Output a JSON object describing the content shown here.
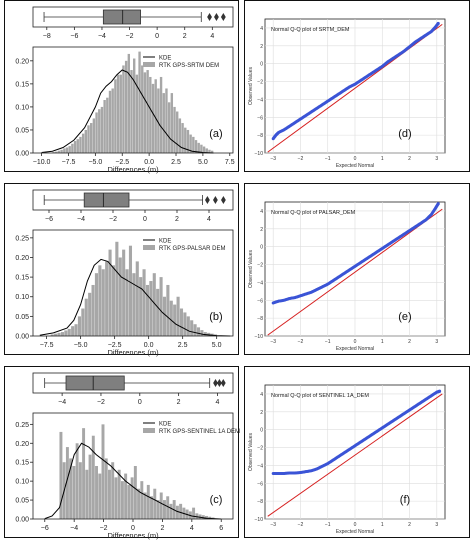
{
  "chart_data": [
    {
      "type": "histogram",
      "panel_label": "(a)",
      "xlabel": "Differences (m)",
      "xticks": [
        -10.0,
        -7.5,
        -5.0,
        -2.5,
        0.0,
        2.5,
        5.0,
        7.5
      ],
      "xticklabels": [
        "−10.0",
        "−7.5",
        "−5.0",
        "−2.5",
        "0.0",
        "2.5",
        "5.0",
        "7.5"
      ],
      "xlim": [
        -10.8,
        7.8
      ],
      "yticks": [
        0.0,
        0.05,
        0.1,
        0.15,
        0.2
      ],
      "yticklabels": [
        "0.00",
        "0.05",
        "0.10",
        "0.15",
        "0.20"
      ],
      "ylim": [
        0,
        0.23
      ],
      "legend": [
        "KDE",
        "RTK GPS-SRTM DEM"
      ],
      "bins": {
        "start": -9.0,
        "width": 0.25,
        "values": [
          0.002,
          0.003,
          0.005,
          0.007,
          0.01,
          0.012,
          0.015,
          0.02,
          0.026,
          0.03,
          0.035,
          0.042,
          0.05,
          0.06,
          0.065,
          0.075,
          0.088,
          0.095,
          0.1,
          0.115,
          0.12,
          0.135,
          0.14,
          0.16,
          0.17,
          0.17,
          0.19,
          0.2,
          0.215,
          0.18,
          0.205,
          0.17,
          0.22,
          0.19,
          0.175,
          0.18,
          0.165,
          0.15,
          0.16,
          0.14,
          0.165,
          0.13,
          0.14,
          0.11,
          0.13,
          0.1,
          0.09,
          0.075,
          0.065,
          0.055,
          0.05,
          0.04,
          0.035,
          0.028,
          0.022,
          0.018,
          0.014,
          0.01,
          0.007,
          0.005
        ]
      },
      "kde": {
        "x": [
          -10,
          -9,
          -8,
          -7,
          -6,
          -5,
          -4.5,
          -4,
          -3.5,
          -3,
          -2.5,
          -2,
          -1.5,
          -1,
          0,
          1,
          2,
          3,
          4,
          5,
          6
        ],
        "y": [
          0.001,
          0.004,
          0.012,
          0.028,
          0.055,
          0.1,
          0.13,
          0.145,
          0.155,
          0.17,
          0.18,
          0.175,
          0.16,
          0.14,
          0.1,
          0.06,
          0.03,
          0.012,
          0.004,
          0.001,
          0.0
        ]
      },
      "boxplot": {
        "whisker_low": -8.2,
        "q1": -3.9,
        "median": -2.5,
        "q3": -1.2,
        "whisker_high": 3.2,
        "outliers": [
          3.8,
          4.3,
          4.8
        ],
        "xticks": [
          -8,
          -6,
          -4,
          -2,
          0,
          2,
          4
        ],
        "xticklabels": [
          "−8",
          "−6",
          "−4",
          "−2",
          "0",
          "2",
          "4"
        ],
        "xlim": [
          -9,
          5.5
        ]
      }
    },
    {
      "type": "histogram",
      "panel_label": "(b)",
      "xlabel": "Differences (m)",
      "xticks": [
        -7.5,
        -5.0,
        -2.5,
        0.0,
        2.5,
        5.0
      ],
      "xticklabels": [
        "−7.5",
        "−5.0",
        "−2.5",
        "0.0",
        "2.5",
        "5.0"
      ],
      "xlim": [
        -8.5,
        6.2
      ],
      "yticks": [
        0.0,
        0.05,
        0.1,
        0.15,
        0.2,
        0.25
      ],
      "yticklabels": [
        "0.00",
        "0.05",
        "0.10",
        "0.15",
        "0.20",
        "0.25"
      ],
      "ylim": [
        0,
        0.27
      ],
      "legend": [
        "KDE",
        "RTK GPS-PALSAR DEM"
      ],
      "bins": {
        "start": -7.2,
        "width": 0.25,
        "values": [
          0.004,
          0.006,
          0.008,
          0.01,
          0.014,
          0.018,
          0.025,
          0.03,
          0.05,
          0.07,
          0.095,
          0.11,
          0.13,
          0.16,
          0.18,
          0.17,
          0.19,
          0.22,
          0.18,
          0.24,
          0.2,
          0.22,
          0.17,
          0.23,
          0.16,
          0.19,
          0.15,
          0.17,
          0.13,
          0.14,
          0.16,
          0.12,
          0.15,
          0.1,
          0.13,
          0.09,
          0.08,
          0.1,
          0.07,
          0.06,
          0.05,
          0.04,
          0.03,
          0.022,
          0.015,
          0.01,
          0.008,
          0.006,
          0.004
        ]
      },
      "kde": {
        "x": [
          -8,
          -7,
          -6,
          -5.5,
          -5,
          -4.5,
          -4,
          -3.5,
          -3,
          -2.5,
          -2,
          -1.5,
          -1,
          -0.5,
          0,
          0.5,
          1,
          2,
          3,
          4,
          5,
          6
        ],
        "y": [
          0.002,
          0.008,
          0.02,
          0.04,
          0.08,
          0.14,
          0.18,
          0.195,
          0.19,
          0.17,
          0.15,
          0.14,
          0.13,
          0.12,
          0.1,
          0.08,
          0.06,
          0.03,
          0.012,
          0.004,
          0.001,
          0.0
        ]
      },
      "boxplot": {
        "whisker_low": -6.3,
        "q1": -3.8,
        "median": -2.6,
        "q3": -1.0,
        "whisker_high": 3.6,
        "outliers": [
          3.9,
          4.4,
          4.9
        ],
        "xticks": [
          -6,
          -4,
          -2,
          0,
          2,
          4
        ],
        "xticklabels": [
          "−6",
          "−4",
          "−2",
          "0",
          "2",
          "4"
        ],
        "xlim": [
          -7.0,
          5.5
        ]
      }
    },
    {
      "type": "histogram",
      "panel_label": "(c)",
      "xlabel": "Differences (m)",
      "xticks": [
        -6,
        -4,
        -2,
        0,
        2,
        4,
        6
      ],
      "xticklabels": [
        "−6",
        "−4",
        "−2",
        "0",
        "2",
        "4",
        "6"
      ],
      "xlim": [
        -6.8,
        6.8
      ],
      "yticks": [
        0.0,
        0.05,
        0.1,
        0.15,
        0.2,
        0.25
      ],
      "yticklabels": [
        "0.00",
        "0.05",
        "0.10",
        "0.15",
        "0.20",
        "0.25"
      ],
      "ylim": [
        0,
        0.28
      ],
      "legend": [
        "KDE",
        "RTK GPS-SENTINEL 1A DEM"
      ],
      "bins": {
        "start": -5.0,
        "width": 0.22,
        "values": [
          0.23,
          0.15,
          0.19,
          0.16,
          0.14,
          0.2,
          0.15,
          0.24,
          0.13,
          0.17,
          0.22,
          0.14,
          0.12,
          0.25,
          0.16,
          0.13,
          0.15,
          0.11,
          0.13,
          0.1,
          0.12,
          0.09,
          0.11,
          0.14,
          0.08,
          0.1,
          0.07,
          0.09,
          0.06,
          0.08,
          0.05,
          0.07,
          0.05,
          0.06,
          0.04,
          0.05,
          0.035,
          0.04,
          0.03,
          0.025,
          0.02,
          0.03,
          0.015,
          0.012,
          0.01,
          0.008,
          0.006,
          0.004
        ]
      },
      "kde": {
        "x": [
          -6,
          -5.5,
          -5,
          -4.5,
          -4,
          -3.5,
          -3,
          -2.5,
          -2,
          -1.5,
          -1,
          -0.5,
          0,
          0.5,
          1,
          1.5,
          2,
          3,
          4,
          5,
          6
        ],
        "y": [
          0.001,
          0.008,
          0.03,
          0.1,
          0.17,
          0.2,
          0.19,
          0.17,
          0.155,
          0.14,
          0.12,
          0.1,
          0.085,
          0.07,
          0.06,
          0.05,
          0.04,
          0.02,
          0.008,
          0.002,
          0.0
        ]
      },
      "boxplot": {
        "whisker_low": -4.9,
        "q1": -3.8,
        "median": -2.4,
        "q3": -0.8,
        "whisker_high": 3.6,
        "outliers": [
          3.9,
          4.1,
          4.3
        ],
        "xticks": [
          -4,
          -2,
          0,
          2,
          4
        ],
        "xticklabels": [
          "−4",
          "−2",
          "0",
          "2",
          "4"
        ],
        "xlim": [
          -5.5,
          4.8
        ]
      }
    },
    {
      "type": "scatter",
      "panel_label": "(d)",
      "title": "Normal Q-Q plot of SRTM_DEM",
      "xlabel": "Expected Normal",
      "ylabel": "Observed Values",
      "xticks": [
        -3,
        -2,
        -1,
        0,
        1,
        2,
        3
      ],
      "xticklabels": [
        "−3",
        "−2",
        "−1",
        "0",
        "1",
        "2",
        "3"
      ],
      "xlim": [
        -3.3,
        3.3
      ],
      "yticks": [
        -10,
        -8,
        -6,
        -4,
        -2,
        0,
        2,
        4
      ],
      "yticklabels": [
        "−10",
        "−8",
        "−6",
        "−4",
        "−2",
        "0",
        "2",
        "4"
      ],
      "ylim": [
        -10,
        5
      ],
      "line": {
        "x": [
          -3.2,
          3.2
        ],
        "y": [
          -9.9,
          4.4
        ]
      },
      "qq": [
        [
          -3,
          -8.4
        ],
        [
          -2.9,
          -8.0
        ],
        [
          -2.8,
          -7.7
        ],
        [
          -2.6,
          -7.4
        ],
        [
          -2.4,
          -7.0
        ],
        [
          -2.2,
          -6.6
        ],
        [
          -2,
          -6.2
        ],
        [
          -1.8,
          -5.8
        ],
        [
          -1.6,
          -5.4
        ],
        [
          -1.4,
          -5.0
        ],
        [
          -1.2,
          -4.6
        ],
        [
          -1,
          -4.2
        ],
        [
          -0.8,
          -3.8
        ],
        [
          -0.6,
          -3.4
        ],
        [
          -0.4,
          -3.0
        ],
        [
          -0.2,
          -2.6
        ],
        [
          0,
          -2.3
        ],
        [
          0.2,
          -1.9
        ],
        [
          0.4,
          -1.5
        ],
        [
          0.6,
          -1.1
        ],
        [
          0.8,
          -0.7
        ],
        [
          1,
          -0.3
        ],
        [
          1.2,
          0.2
        ],
        [
          1.4,
          0.6
        ],
        [
          1.6,
          1.0
        ],
        [
          1.8,
          1.4
        ],
        [
          2,
          1.9
        ],
        [
          2.2,
          2.4
        ],
        [
          2.4,
          2.8
        ],
        [
          2.6,
          3.2
        ],
        [
          2.8,
          3.6
        ],
        [
          2.95,
          4.1
        ],
        [
          3.05,
          4.5
        ]
      ]
    },
    {
      "type": "scatter",
      "panel_label": "(e)",
      "title": "Normal Q-Q plot of PALSAR_DEM",
      "xlabel": "Expected Normal",
      "ylabel": "Observed Values",
      "xticks": [
        -3,
        -2,
        -1,
        0,
        1,
        2,
        3
      ],
      "xticklabels": [
        "−3",
        "−2",
        "−1",
        "0",
        "1",
        "2",
        "3"
      ],
      "xlim": [
        -3.3,
        3.3
      ],
      "yticks": [
        -10,
        -8,
        -6,
        -4,
        -2,
        0,
        2,
        4
      ],
      "yticklabels": [
        "−10",
        "−8",
        "−6",
        "−4",
        "−2",
        "0",
        "2",
        "4"
      ],
      "ylim": [
        -10,
        5
      ],
      "line": {
        "x": [
          -3.2,
          3.2
        ],
        "y": [
          -9.9,
          4.2
        ]
      },
      "qq": [
        [
          -3,
          -6.3
        ],
        [
          -2.8,
          -6.1
        ],
        [
          -2.6,
          -6.0
        ],
        [
          -2.4,
          -5.8
        ],
        [
          -2.2,
          -5.7
        ],
        [
          -2,
          -5.5
        ],
        [
          -1.8,
          -5.3
        ],
        [
          -1.6,
          -5.1
        ],
        [
          -1.4,
          -4.8
        ],
        [
          -1.2,
          -4.5
        ],
        [
          -1,
          -4.2
        ],
        [
          -0.8,
          -3.8
        ],
        [
          -0.6,
          -3.4
        ],
        [
          -0.4,
          -3.0
        ],
        [
          -0.2,
          -2.6
        ],
        [
          0,
          -2.2
        ],
        [
          0.2,
          -1.8
        ],
        [
          0.4,
          -1.4
        ],
        [
          0.6,
          -1.0
        ],
        [
          0.8,
          -0.6
        ],
        [
          1,
          -0.2
        ],
        [
          1.2,
          0.2
        ],
        [
          1.4,
          0.6
        ],
        [
          1.6,
          1.0
        ],
        [
          1.8,
          1.4
        ],
        [
          2,
          1.8
        ],
        [
          2.2,
          2.2
        ],
        [
          2.4,
          2.6
        ],
        [
          2.6,
          3.0
        ],
        [
          2.8,
          3.6
        ],
        [
          2.95,
          4.3
        ],
        [
          3.05,
          4.8
        ]
      ]
    },
    {
      "type": "scatter",
      "panel_label": "(f)",
      "title": "Normal Q-Q plot of SENTINEL 1A_DEM",
      "xlabel": "Expected Normal",
      "ylabel": "Observed Values",
      "xticks": [
        -3,
        -2,
        -1,
        0,
        1,
        2,
        3
      ],
      "xticklabels": [
        "−3",
        "−2",
        "−1",
        "0",
        "1",
        "2",
        "3"
      ],
      "xlim": [
        -3.3,
        3.3
      ],
      "yticks": [
        -10,
        -8,
        -6,
        -4,
        -2,
        0,
        2,
        4
      ],
      "yticklabels": [
        "−10",
        "−8",
        "−6",
        "−4",
        "−2",
        "0",
        "2",
        "4"
      ],
      "ylim": [
        -10,
        5
      ],
      "line": {
        "x": [
          -3.2,
          3.2
        ],
        "y": [
          -9.7,
          4.0
        ]
      },
      "qq": [
        [
          -3,
          -4.9
        ],
        [
          -2.8,
          -4.9
        ],
        [
          -2.6,
          -4.9
        ],
        [
          -2.4,
          -4.85
        ],
        [
          -2.2,
          -4.85
        ],
        [
          -2,
          -4.8
        ],
        [
          -1.8,
          -4.7
        ],
        [
          -1.6,
          -4.6
        ],
        [
          -1.4,
          -4.4
        ],
        [
          -1.2,
          -4.1
        ],
        [
          -1,
          -3.8
        ],
        [
          -0.8,
          -3.4
        ],
        [
          -0.6,
          -3.0
        ],
        [
          -0.4,
          -2.6
        ],
        [
          -0.2,
          -2.2
        ],
        [
          0,
          -1.8
        ],
        [
          0.2,
          -1.4
        ],
        [
          0.4,
          -1.0
        ],
        [
          0.6,
          -0.6
        ],
        [
          0.8,
          -0.2
        ],
        [
          1,
          0.2
        ],
        [
          1.2,
          0.6
        ],
        [
          1.4,
          1.0
        ],
        [
          1.6,
          1.4
        ],
        [
          1.8,
          1.8
        ],
        [
          2,
          2.2
        ],
        [
          2.2,
          2.6
        ],
        [
          2.4,
          3.0
        ],
        [
          2.6,
          3.4
        ],
        [
          2.8,
          3.8
        ],
        [
          3,
          4.2
        ],
        [
          3.1,
          4.3
        ]
      ]
    }
  ],
  "colors": {
    "bar": "#a7a7a7",
    "kde": "#000000",
    "box": "#7f7f7f",
    "point": "#3b54d6",
    "line": "#d62020",
    "grid": "#dddddd",
    "axis": "#222222"
  }
}
